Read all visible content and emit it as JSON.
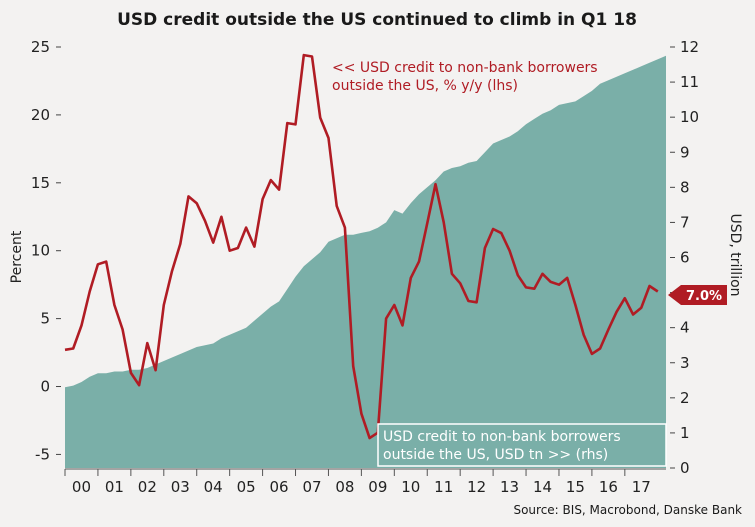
{
  "chart_data": {
    "type": "line",
    "title": "USD credit outside the US continued to climb in Q1 18",
    "xlabel": "",
    "ylabel_left": "Percent",
    "ylabel_right": "USD, trillion",
    "ylim_left": [
      -6,
      25
    ],
    "ylim_right": [
      0,
      12
    ],
    "yticks_left": [
      25,
      20,
      15,
      10,
      5,
      0,
      -5
    ],
    "yticks_right": [
      12,
      11,
      10,
      9,
      8,
      7,
      6,
      5,
      4,
      3,
      2,
      1,
      0
    ],
    "xlim": [
      2000.0,
      2018.25
    ],
    "xtick_labels": [
      "00",
      "01",
      "02",
      "03",
      "04",
      "05",
      "06",
      "07",
      "08",
      "09",
      "10",
      "11",
      "12",
      "13",
      "14",
      "15",
      "16",
      "17"
    ],
    "series": [
      {
        "name": "USD credit to non-bank borrowers outside the US, USD tn (rhs)",
        "kind": "area",
        "axis": "right",
        "color": "#7aafa8",
        "x": [
          2000.0,
          2000.25,
          2000.5,
          2000.75,
          2001.0,
          2001.25,
          2001.5,
          2001.75,
          2002.0,
          2002.25,
          2002.5,
          2002.75,
          2003.0,
          2003.25,
          2003.5,
          2003.75,
          2004.0,
          2004.25,
          2004.5,
          2004.75,
          2005.0,
          2005.25,
          2005.5,
          2005.75,
          2006.0,
          2006.25,
          2006.5,
          2006.75,
          2007.0,
          2007.25,
          2007.5,
          2007.75,
          2008.0,
          2008.25,
          2008.5,
          2008.75,
          2009.0,
          2009.25,
          2009.5,
          2009.75,
          2010.0,
          2010.25,
          2010.5,
          2010.75,
          2011.0,
          2011.25,
          2011.5,
          2011.75,
          2012.0,
          2012.25,
          2012.5,
          2012.75,
          2013.0,
          2013.25,
          2013.5,
          2013.75,
          2014.0,
          2014.25,
          2014.5,
          2014.75,
          2015.0,
          2015.25,
          2015.5,
          2015.75,
          2016.0,
          2016.25,
          2016.5,
          2016.75,
          2017.0,
          2017.25,
          2017.5,
          2017.75,
          2018.0,
          2018.25
        ],
        "values": [
          2.3,
          2.35,
          2.45,
          2.6,
          2.7,
          2.7,
          2.75,
          2.75,
          2.8,
          2.8,
          2.85,
          2.95,
          3.05,
          3.15,
          3.25,
          3.35,
          3.45,
          3.5,
          3.55,
          3.7,
          3.8,
          3.9,
          4.0,
          4.2,
          4.4,
          4.6,
          4.75,
          5.1,
          5.45,
          5.75,
          5.95,
          6.15,
          6.45,
          6.55,
          6.65,
          6.65,
          6.7,
          6.75,
          6.85,
          7.0,
          7.35,
          7.25,
          7.55,
          7.8,
          8.0,
          8.2,
          8.45,
          8.55,
          8.6,
          8.7,
          8.75,
          9.0,
          9.25,
          9.35,
          9.45,
          9.6,
          9.8,
          9.95,
          10.1,
          10.2,
          10.35,
          10.4,
          10.45,
          10.6,
          10.75,
          10.95,
          11.05,
          11.15,
          11.25,
          11.35,
          11.45,
          11.55,
          11.65,
          11.75
        ]
      },
      {
        "name": "USD credit to non-bank borrowers outside the US, % y/y (lhs)",
        "kind": "line",
        "axis": "left",
        "color": "#b01c24",
        "x": [
          2000.0,
          2000.25,
          2000.5,
          2000.75,
          2001.0,
          2001.25,
          2001.5,
          2001.75,
          2002.0,
          2002.25,
          2002.5,
          2002.75,
          2003.0,
          2003.25,
          2003.5,
          2003.75,
          2004.0,
          2004.25,
          2004.5,
          2004.75,
          2005.0,
          2005.25,
          2005.5,
          2005.75,
          2006.0,
          2006.25,
          2006.5,
          2006.75,
          2007.0,
          2007.25,
          2007.5,
          2007.75,
          2008.0,
          2008.25,
          2008.5,
          2008.75,
          2009.0,
          2009.25,
          2009.5,
          2009.75,
          2010.0,
          2010.25,
          2010.5,
          2010.75,
          2011.0,
          2011.25,
          2011.5,
          2011.75,
          2012.0,
          2012.25,
          2012.5,
          2012.75,
          2013.0,
          2013.25,
          2013.5,
          2013.75,
          2014.0,
          2014.25,
          2014.5,
          2014.75,
          2015.0,
          2015.25,
          2015.5,
          2015.75,
          2016.0,
          2016.25,
          2016.5,
          2016.75,
          2017.0,
          2017.25,
          2017.5,
          2017.75,
          2018.0
        ],
        "values": [
          2.7,
          2.8,
          4.5,
          7.0,
          9.0,
          9.2,
          6.0,
          4.2,
          1.0,
          0.1,
          3.2,
          1.2,
          6.0,
          8.5,
          10.5,
          14.0,
          13.5,
          12.2,
          10.6,
          12.5,
          10.0,
          10.2,
          11.7,
          10.3,
          13.8,
          15.2,
          14.5,
          19.4,
          19.3,
          24.4,
          24.3,
          19.8,
          18.3,
          13.3,
          11.7,
          1.5,
          -2.0,
          -3.8,
          -3.4,
          5.0,
          6.0,
          4.5,
          8.0,
          9.2,
          12.0,
          14.9,
          12.1,
          8.3,
          7.6,
          6.3,
          6.2,
          10.2,
          11.6,
          11.3,
          10.0,
          8.2,
          7.3,
          7.2,
          8.3,
          7.7,
          7.5,
          8.0,
          6.0,
          3.8,
          2.4,
          2.8,
          4.2,
          5.5,
          6.5,
          5.3,
          5.8,
          7.4,
          7.0
        ]
      }
    ],
    "annotations": {
      "red_label_line1": "<< USD credit to non-bank borrowers",
      "red_label_line2": "outside the US, % y/y (lhs)",
      "teal_label_line1": "USD credit to non-bank borrowers",
      "teal_label_line2": "outside the US, USD tn >> (rhs)",
      "last_value_badge": "7.0%"
    },
    "source": "Source: BIS, Macrobond, Danske Bank"
  }
}
